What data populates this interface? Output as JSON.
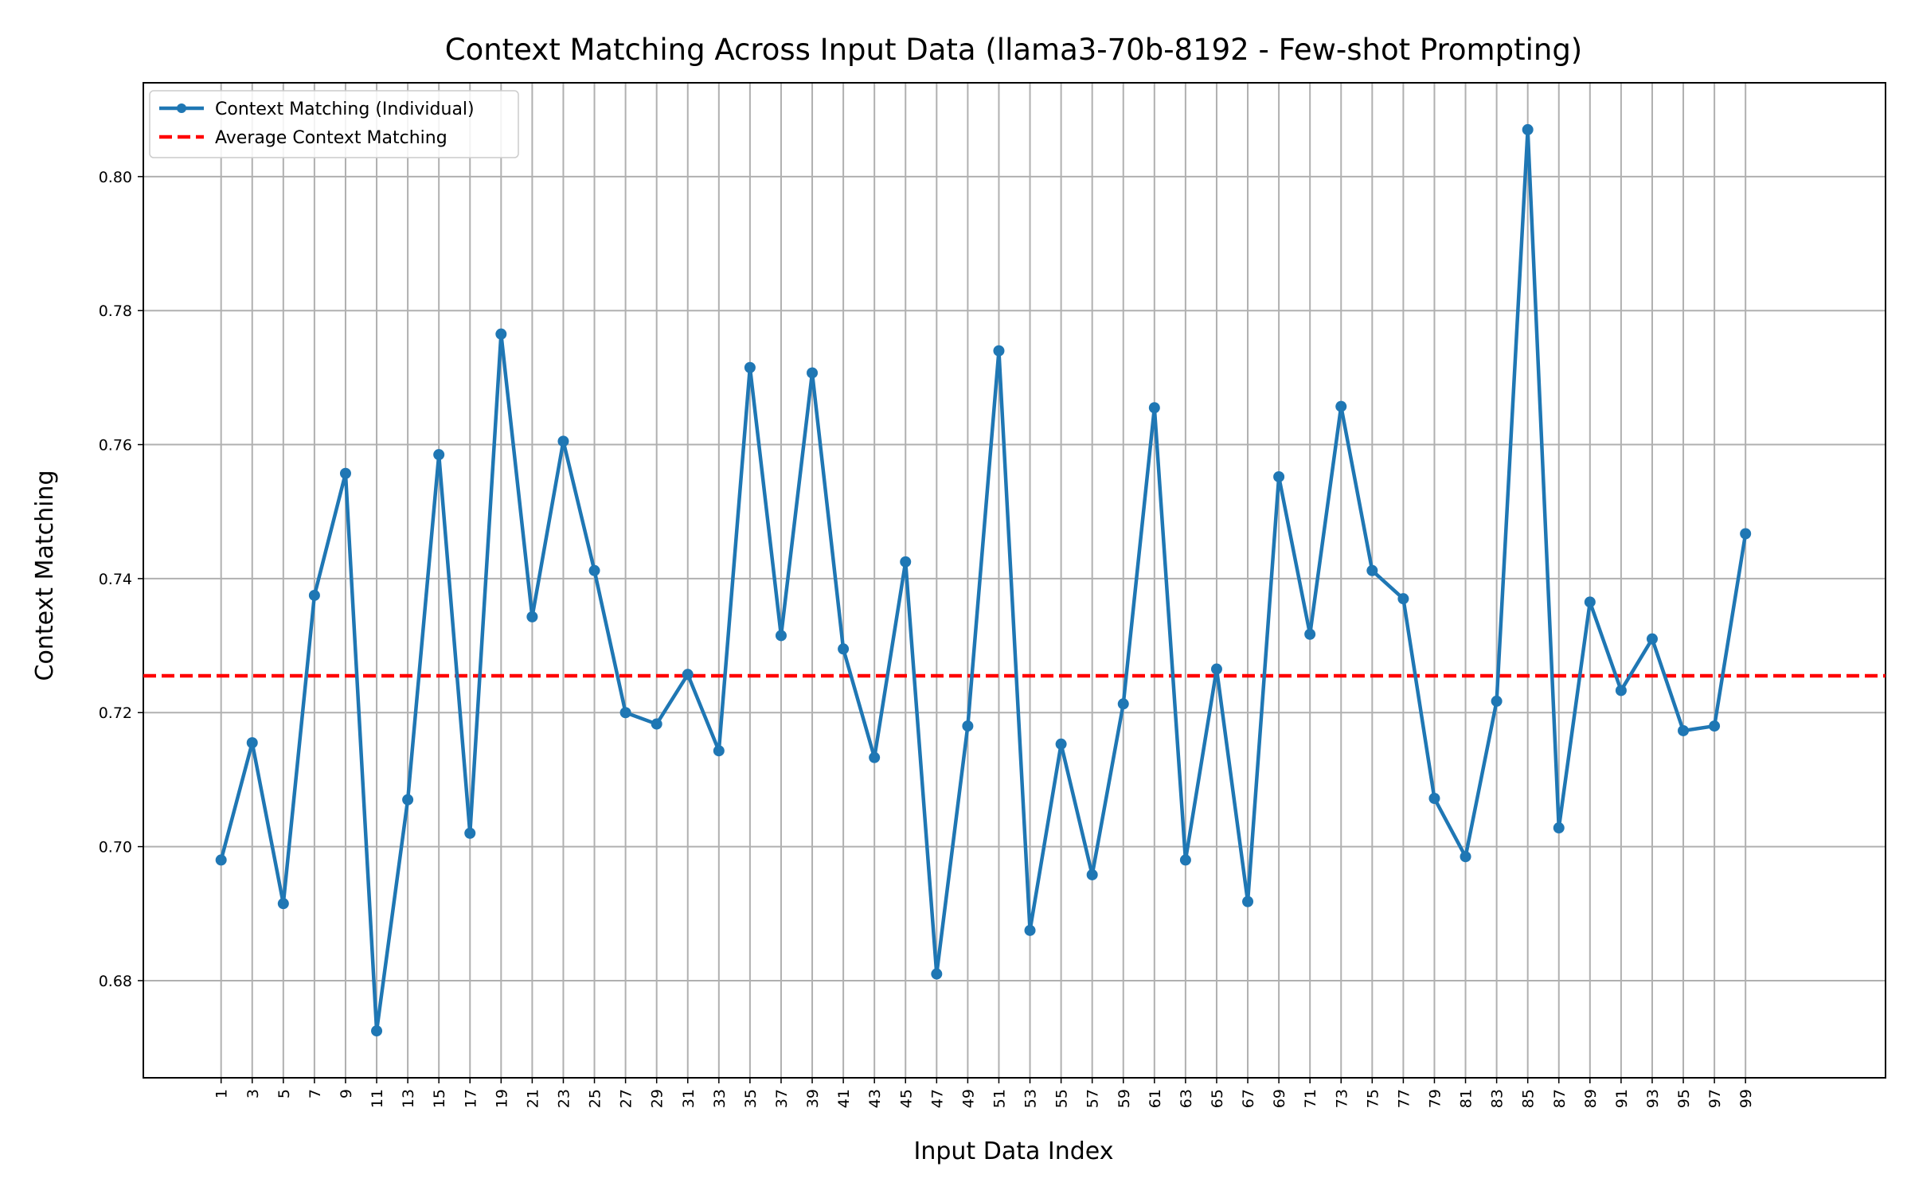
{
  "chart_data": {
    "type": "line",
    "title": "Context Matching Across Input Data (llama3-70b-8192 - Few-shot Prompting)",
    "xlabel": "Input Data Index",
    "ylabel": "Context Matching",
    "x": [
      1,
      3,
      5,
      7,
      9,
      11,
      13,
      15,
      17,
      19,
      21,
      23,
      25,
      27,
      29,
      31,
      33,
      35,
      37,
      39,
      41,
      43,
      45,
      47,
      49,
      51,
      53,
      55,
      57,
      59,
      61,
      63,
      65,
      67,
      69,
      71,
      73,
      75,
      77,
      79,
      81,
      83,
      85,
      87,
      89,
      91,
      93,
      95,
      97,
      99
    ],
    "xticks": [
      "1",
      "3",
      "5",
      "7",
      "9",
      "11",
      "13",
      "15",
      "17",
      "19",
      "21",
      "23",
      "25",
      "27",
      "29",
      "31",
      "33",
      "35",
      "37",
      "39",
      "41",
      "43",
      "45",
      "47",
      "49",
      "51",
      "53",
      "55",
      "57",
      "59",
      "61",
      "63",
      "65",
      "67",
      "69",
      "71",
      "73",
      "75",
      "77",
      "79",
      "81",
      "83",
      "85",
      "87",
      "89",
      "91",
      "93",
      "95",
      "97",
      "99"
    ],
    "yticks": [
      "0.68",
      "0.70",
      "0.72",
      "0.74",
      "0.76",
      "0.78",
      "0.80"
    ],
    "ytick_values": [
      0.68,
      0.7,
      0.72,
      0.74,
      0.76,
      0.78,
      0.8
    ],
    "xlim": [
      -4,
      108
    ],
    "ylim": [
      0.6655,
      0.814
    ],
    "grid": true,
    "legend_position": "top-left",
    "series": [
      {
        "name": "Context Matching (Individual)",
        "color": "#1f77b4",
        "style": "solid-marker",
        "values": [
          0.698,
          0.7155,
          0.6915,
          0.7375,
          0.7557,
          0.6725,
          0.707,
          0.7585,
          0.702,
          0.7765,
          0.7343,
          0.7605,
          0.7412,
          0.72,
          0.7183,
          0.7257,
          0.7143,
          0.7715,
          0.7315,
          0.7707,
          0.7295,
          0.7133,
          0.7425,
          0.681,
          0.718,
          0.774,
          0.6875,
          0.7153,
          0.6958,
          0.7213,
          0.7655,
          0.698,
          0.7265,
          0.6918,
          0.7552,
          0.7317,
          0.7657,
          0.7412,
          0.737,
          0.7072,
          0.6985,
          0.7217,
          0.807,
          0.7028,
          0.7365,
          0.7233,
          0.731,
          0.7173,
          0.718,
          0.7467
        ]
      },
      {
        "name": "Average Context Matching",
        "color": "#ff0000",
        "style": "dashed",
        "value": 0.7255
      }
    ]
  }
}
